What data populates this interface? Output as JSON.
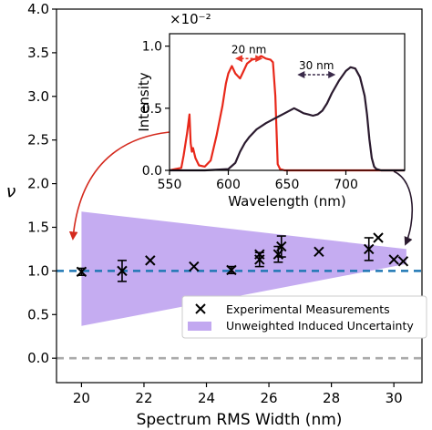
{
  "chart_data": [
    {
      "type": "scatter",
      "title": "",
      "xlabel": "Spectrum RMS Width (nm)",
      "ylabel": "ν",
      "xlim": [
        19.2,
        30.9
      ],
      "ylim": [
        -0.28,
        4.0
      ],
      "xticks": [
        20,
        22,
        24,
        26,
        28,
        30
      ],
      "yticks": [
        0.0,
        0.5,
        1.0,
        1.5,
        2.0,
        2.5,
        3.0,
        3.5,
        4.0
      ],
      "xtick_labels": [
        "20",
        "22",
        "24",
        "26",
        "28",
        "30"
      ],
      "ytick_labels": [
        "0.0",
        "0.5",
        "1.0",
        "1.5",
        "2.0",
        "2.5",
        "3.0",
        "3.5",
        "4.0"
      ],
      "grid": false,
      "legend_position": "bottom-right",
      "reference_lines": [
        {
          "y": 1.0,
          "style": "dashed",
          "color": "#1f77b4"
        },
        {
          "y": 0.0,
          "style": "dashed",
          "color": "#aaaaaa"
        }
      ],
      "uncertainty_band": {
        "name": "Unweighted Induced Uncertainty",
        "color": "#c2a8f0",
        "x": [
          20.0,
          30.4
        ],
        "upper": [
          1.68,
          1.25
        ],
        "lower": [
          0.37,
          1.08
        ]
      },
      "series": [
        {
          "name": "Experimental Measurements",
          "marker": "x",
          "color": "#000000",
          "points": [
            {
              "x": 20.0,
              "y": 0.99,
              "err": 0.04
            },
            {
              "x": 21.3,
              "y": 1.0,
              "err": 0.12
            },
            {
              "x": 22.2,
              "y": 1.12,
              "err": 0.0
            },
            {
              "x": 23.6,
              "y": 1.05,
              "err": 0.0
            },
            {
              "x": 24.8,
              "y": 1.01,
              "err": 0.04
            },
            {
              "x": 25.7,
              "y": 1.13,
              "err": 0.08
            },
            {
              "x": 25.7,
              "y": 1.19,
              "err": 0.0
            },
            {
              "x": 26.3,
              "y": 1.19,
              "err": 0.09
            },
            {
              "x": 26.4,
              "y": 1.28,
              "err": 0.12
            },
            {
              "x": 27.6,
              "y": 1.22,
              "err": 0.0
            },
            {
              "x": 29.2,
              "y": 1.25,
              "err": 0.13
            },
            {
              "x": 29.5,
              "y": 1.38,
              "err": 0.0
            },
            {
              "x": 30.0,
              "y": 1.13,
              "err": 0.0
            },
            {
              "x": 30.3,
              "y": 1.11,
              "err": 0.0
            }
          ]
        }
      ],
      "legend": [
        "Experimental Measurements",
        "Unweighted Induced Uncertainty"
      ]
    },
    {
      "type": "line",
      "title": "",
      "xlabel": "Wavelength (nm)",
      "ylabel": "Intensity",
      "scale_label": "×10⁻²",
      "xlim": [
        550,
        750
      ],
      "ylim": [
        0,
        1.1
      ],
      "xticks": [
        550,
        600,
        650,
        700
      ],
      "yticks": [
        0.0,
        0.5,
        1.0
      ],
      "xtick_labels": [
        "550",
        "600",
        "650",
        "700"
      ],
      "ytick_labels": [
        "0.0",
        "0.5",
        "1.0"
      ],
      "annotations": [
        {
          "text": "20 nm",
          "color": "#e8382a",
          "x_range": [
            607,
            628
          ],
          "y": 0.9
        },
        {
          "text": "30 nm",
          "color": "#3a2a4a",
          "x_range": [
            660,
            690
          ],
          "y": 0.77
        }
      ],
      "series": [
        {
          "color": "#e8281a",
          "x": [
            550,
            555,
            560,
            562,
            565,
            567,
            568,
            569,
            570,
            572,
            575,
            580,
            585,
            590,
            595,
            598,
            600,
            603,
            606,
            610,
            613,
            616,
            620,
            624,
            628,
            632,
            636,
            638,
            640,
            642,
            644,
            648,
            660,
            680,
            700,
            720,
            750
          ],
          "y": [
            0.0,
            0.01,
            0.02,
            0.12,
            0.3,
            0.45,
            0.22,
            0.15,
            0.18,
            0.1,
            0.04,
            0.03,
            0.08,
            0.28,
            0.52,
            0.7,
            0.78,
            0.84,
            0.78,
            0.74,
            0.8,
            0.86,
            0.89,
            0.9,
            0.92,
            0.9,
            0.89,
            0.87,
            0.6,
            0.05,
            0.01,
            0.0,
            0.0,
            0.0,
            0.0,
            0.0,
            0.0
          ]
        },
        {
          "color": "#2a1a2e",
          "x": [
            550,
            580,
            600,
            606,
            610,
            614,
            618,
            624,
            632,
            640,
            648,
            656,
            660,
            664,
            668,
            672,
            676,
            680,
            684,
            688,
            694,
            700,
            704,
            708,
            712,
            716,
            718,
            720,
            722,
            724,
            726,
            730,
            750
          ],
          "y": [
            0.0,
            0.0,
            0.01,
            0.06,
            0.15,
            0.22,
            0.27,
            0.33,
            0.38,
            0.42,
            0.46,
            0.5,
            0.48,
            0.46,
            0.45,
            0.44,
            0.45,
            0.48,
            0.54,
            0.62,
            0.72,
            0.8,
            0.83,
            0.82,
            0.75,
            0.6,
            0.45,
            0.25,
            0.1,
            0.03,
            0.01,
            0.0,
            0.0
          ]
        }
      ]
    }
  ]
}
